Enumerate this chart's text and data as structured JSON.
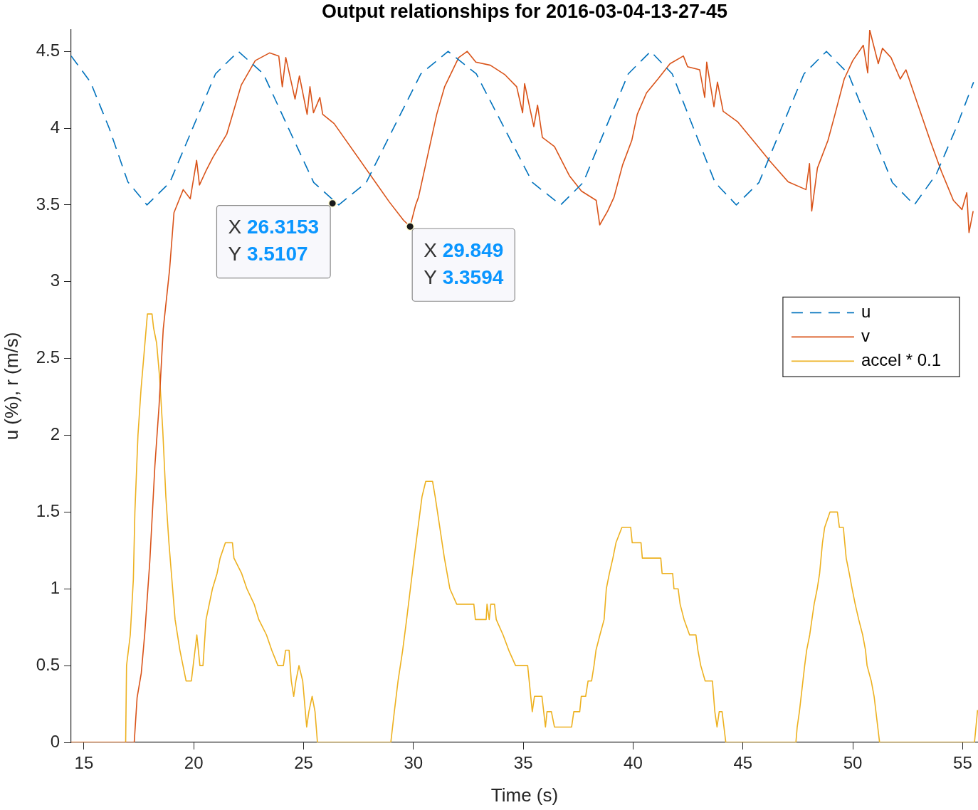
{
  "chart_data": {
    "type": "line",
    "title": "Output relationships for 2016-03-04-13-27-45",
    "xlabel": "Time (s)",
    "ylabel": "u (%), r (m/s)",
    "xlim": [
      14.42,
      55.7
    ],
    "xticks": [
      15,
      20,
      25,
      30,
      35,
      40,
      45,
      50,
      55
    ],
    "ylim": [
      0,
      4.64
    ],
    "yticks": [
      0,
      0.5,
      1,
      1.5,
      2,
      2.5,
      3,
      3.5,
      4,
      4.5
    ],
    "grid": false,
    "legend": "right",
    "marker": "none",
    "series": [
      {
        "name": "u",
        "color": "#0072bd",
        "line_style": "dashed",
        "x": [
          14.42,
          15.3,
          16.15,
          17.0,
          17.87,
          18.91,
          19.95,
          20.99,
          22.03,
          23.17,
          24.31,
          25.46,
          26.6,
          27.85,
          29.09,
          30.34,
          31.58,
          32.86,
          34.14,
          35.42,
          36.7,
          37.73,
          38.75,
          39.78,
          40.8,
          41.78,
          42.75,
          43.73,
          44.7,
          45.73,
          46.75,
          47.78,
          48.8,
          49.8,
          50.8,
          51.8,
          52.8,
          53.8,
          54.7,
          55.5
        ],
        "values": [
          4.47,
          4.3,
          4.0,
          3.65,
          3.5,
          3.646,
          4.0,
          4.354,
          4.5,
          4.354,
          4.0,
          3.646,
          3.5,
          3.646,
          4.0,
          4.354,
          4.5,
          4.354,
          4.0,
          3.646,
          3.5,
          3.646,
          4.0,
          4.354,
          4.5,
          4.354,
          4.0,
          3.646,
          3.5,
          3.646,
          4.0,
          4.354,
          4.5,
          4.354,
          4.0,
          3.646,
          3.5,
          3.7,
          4.0,
          4.3
        ]
      },
      {
        "name": "v",
        "color": "#d95319",
        "line_style": "solid",
        "x": [
          14.42,
          17.29,
          17.42,
          17.61,
          17.77,
          18.0,
          18.23,
          18.42,
          18.61,
          18.9,
          19.1,
          19.52,
          19.84,
          20.13,
          20.26,
          20.55,
          20.87,
          21.5,
          22.16,
          22.8,
          23.45,
          23.87,
          24.03,
          24.19,
          24.61,
          24.81,
          25.16,
          25.29,
          25.45,
          25.74,
          25.87,
          26.39,
          28.9,
          29.55,
          29.849,
          30.1,
          30.23,
          31.06,
          31.42,
          32.06,
          32.45,
          32.84,
          33.5,
          34.15,
          34.7,
          34.97,
          35.06,
          35.48,
          35.65,
          35.87,
          36.42,
          37.1,
          37.65,
          38.32,
          38.48,
          38.84,
          39.13,
          39.52,
          39.94,
          40.19,
          40.61,
          41.13,
          41.68,
          42.29,
          42.48,
          43.03,
          43.26,
          43.35,
          43.68,
          43.84,
          44.1,
          44.77,
          45.58,
          46.26,
          47.06,
          47.87,
          48.03,
          48.13,
          48.39,
          48.87,
          49.19,
          49.61,
          50.0,
          50.48,
          50.68,
          50.77,
          51.16,
          51.35,
          51.74,
          52.16,
          52.42,
          52.97,
          53.52,
          54.03,
          54.58,
          54.97,
          55.19,
          55.29,
          55.48
        ],
        "values": [
          0,
          0,
          0.29,
          0.45,
          0.71,
          1.18,
          1.8,
          2.19,
          2.69,
          3.08,
          3.45,
          3.6,
          3.54,
          3.79,
          3.63,
          3.72,
          3.81,
          3.96,
          4.28,
          4.44,
          4.49,
          4.47,
          4.27,
          4.46,
          4.19,
          4.34,
          4.09,
          4.27,
          4.1,
          4.2,
          4.09,
          4.03,
          3.52,
          3.4,
          3.36,
          3.5,
          3.55,
          4.09,
          4.27,
          4.46,
          4.5,
          4.43,
          4.41,
          4.35,
          4.27,
          4.1,
          4.29,
          4.01,
          4.15,
          3.94,
          3.88,
          3.69,
          3.59,
          3.53,
          3.37,
          3.46,
          3.55,
          3.76,
          3.92,
          4.09,
          4.23,
          4.32,
          4.42,
          4.47,
          4.4,
          4.38,
          4.2,
          4.43,
          4.14,
          4.3,
          4.11,
          4.04,
          3.9,
          3.78,
          3.65,
          3.6,
          3.77,
          3.46,
          3.74,
          3.92,
          4.09,
          4.32,
          4.44,
          4.54,
          4.36,
          4.64,
          4.42,
          4.52,
          4.46,
          4.32,
          4.38,
          4.15,
          3.92,
          3.72,
          3.53,
          3.47,
          3.58,
          3.32,
          3.46
        ]
      },
      {
        "name": "accel * 0.1",
        "color": "#edb120",
        "line_style": "solid",
        "x": [
          14.42,
          16.9,
          16.94,
          17.11,
          17.25,
          17.32,
          17.46,
          17.6,
          17.89,
          18.1,
          18.17,
          18.31,
          18.45,
          18.59,
          18.73,
          18.87,
          19.15,
          19.37,
          19.51,
          19.65,
          19.89,
          20.14,
          20.28,
          20.42,
          20.56,
          20.85,
          21.06,
          21.2,
          21.44,
          21.76,
          21.83,
          22.18,
          22.42,
          22.75,
          22.96,
          23.31,
          23.55,
          23.83,
          24.08,
          24.18,
          24.34,
          24.44,
          24.55,
          24.65,
          24.79,
          24.96,
          25.14,
          25.24,
          25.39,
          25.52,
          25.63,
          28.97,
          29.13,
          29.3,
          29.51,
          29.69,
          29.86,
          30.03,
          30.21,
          30.39,
          30.56,
          30.87,
          30.99,
          31.2,
          31.41,
          31.66,
          31.97,
          32.75,
          32.82,
          33.31,
          33.35,
          33.45,
          33.52,
          33.69,
          33.77,
          34.08,
          34.34,
          34.65,
          35.2,
          35.41,
          35.51,
          35.85,
          36.01,
          36.08,
          36.28,
          36.42,
          37.2,
          37.3,
          37.57,
          37.64,
          37.84,
          37.95,
          38.11,
          38.22,
          38.31,
          38.49,
          38.68,
          38.78,
          38.92,
          39.08,
          39.22,
          39.49,
          39.89,
          39.96,
          40.36,
          40.42,
          41.26,
          41.32,
          41.8,
          41.86,
          42.05,
          42.14,
          42.32,
          42.57,
          42.86,
          42.95,
          43.08,
          43.28,
          43.61,
          43.72,
          43.82,
          43.92,
          44.05,
          44.22,
          47.41,
          47.47,
          47.57,
          47.81,
          47.9,
          48.04,
          48.14,
          48.24,
          48.38,
          48.49,
          48.62,
          48.72,
          48.96,
          49.3,
          49.39,
          49.57,
          49.7,
          49.84,
          49.97,
          50.11,
          50.27,
          50.45,
          50.58,
          50.65,
          50.84,
          50.97,
          51.22,
          55.54,
          55.68
        ],
        "values": [
          0,
          0,
          0.5,
          0.7,
          1.06,
          1.5,
          2.0,
          2.3,
          2.79,
          2.79,
          2.7,
          2.6,
          2.37,
          2.03,
          1.6,
          1.3,
          0.8,
          0.6,
          0.5,
          0.4,
          0.4,
          0.7,
          0.5,
          0.5,
          0.8,
          1.0,
          1.1,
          1.2,
          1.3,
          1.3,
          1.2,
          1.1,
          1.0,
          0.9,
          0.8,
          0.7,
          0.6,
          0.5,
          0.5,
          0.6,
          0.6,
          0.4,
          0.3,
          0.4,
          0.5,
          0.4,
          0.1,
          0.2,
          0.3,
          0.2,
          0,
          0,
          0.2,
          0.4,
          0.6,
          0.8,
          1.0,
          1.2,
          1.4,
          1.6,
          1.7,
          1.7,
          1.6,
          1.4,
          1.2,
          1.0,
          0.9,
          0.9,
          0.8,
          0.8,
          0.9,
          0.8,
          0.9,
          0.9,
          0.8,
          0.7,
          0.6,
          0.5,
          0.5,
          0.2,
          0.3,
          0.3,
          0.1,
          0.2,
          0.2,
          0.1,
          0.1,
          0.2,
          0.2,
          0.3,
          0.3,
          0.4,
          0.4,
          0.5,
          0.6,
          0.7,
          0.8,
          1.0,
          1.1,
          1.2,
          1.3,
          1.4,
          1.4,
          1.3,
          1.3,
          1.2,
          1.2,
          1.1,
          1.1,
          1.0,
          1.0,
          0.9,
          0.8,
          0.7,
          0.7,
          0.6,
          0.5,
          0.4,
          0.4,
          0.2,
          0.1,
          0.2,
          0.2,
          0,
          0,
          0.1,
          0.2,
          0.5,
          0.6,
          0.7,
          0.8,
          0.9,
          1.0,
          1.1,
          1.3,
          1.4,
          1.5,
          1.5,
          1.4,
          1.4,
          1.2,
          1.1,
          1.0,
          0.9,
          0.8,
          0.7,
          0.6,
          0.5,
          0.4,
          0.3,
          0,
          0,
          0.21
        ]
      }
    ],
    "annotations": [
      {
        "text": "X 26.3153\nY 3.5107",
        "x": 26.3153,
        "y": 3.5107
      },
      {
        "text": "X 29.849\nY 3.3594",
        "x": 29.849,
        "y": 3.3594
      }
    ]
  }
}
